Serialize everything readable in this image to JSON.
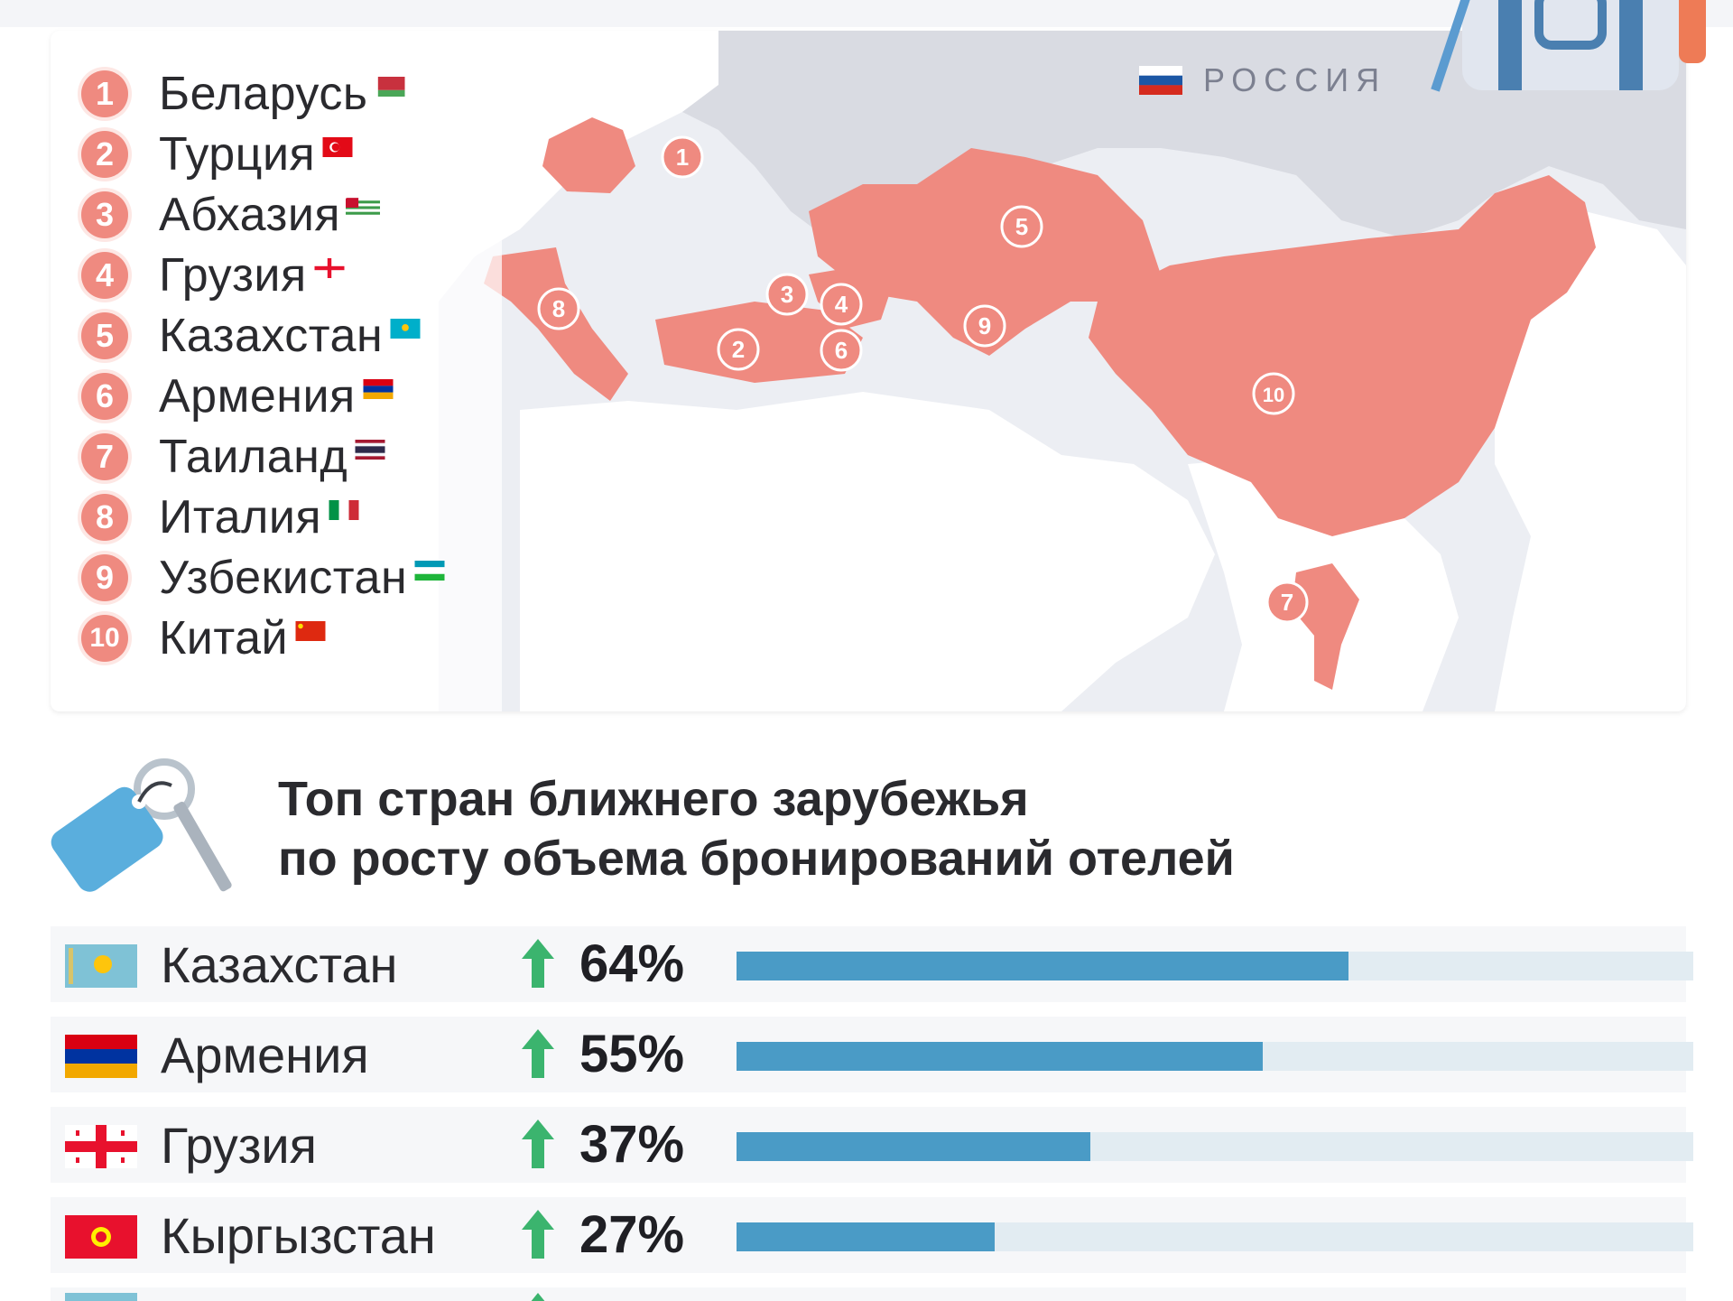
{
  "map": {
    "legend": [
      {
        "num": "1",
        "name": "Беларусь",
        "flag_icon": "belarus-flag-icon"
      },
      {
        "num": "2",
        "name": "Турция",
        "flag_icon": "turkey-flag-icon"
      },
      {
        "num": "3",
        "name": "Абхазия",
        "flag_icon": "abkhazia-flag-icon"
      },
      {
        "num": "4",
        "name": "Грузия",
        "flag_icon": "georgia-flag-icon"
      },
      {
        "num": "5",
        "name": "Казахстан",
        "flag_icon": "kazakhstan-flag-icon"
      },
      {
        "num": "6",
        "name": "Армения",
        "flag_icon": "armenia-flag-icon"
      },
      {
        "num": "7",
        "name": "Таиланд",
        "flag_icon": "thailand-flag-icon"
      },
      {
        "num": "8",
        "name": "Италия",
        "flag_icon": "italy-flag-icon"
      },
      {
        "num": "9",
        "name": "Узбекистан",
        "flag_icon": "uzbekistan-flag-icon"
      },
      {
        "num": "10",
        "name": "Китай",
        "flag_icon": "china-flag-icon"
      }
    ],
    "russia_label": "РОССИЯ",
    "markers": [
      "1",
      "2",
      "3",
      "4",
      "5",
      "6",
      "7",
      "8",
      "9",
      "10"
    ],
    "colors": {
      "highlight": "#ef8a80",
      "land": "#ffffff",
      "russia": "#d9dbe2",
      "water": "#eceef3"
    }
  },
  "section": {
    "title_line1": "Топ стран ближнего зарубежья",
    "title_line2": "по росту объема бронирований отелей",
    "bar_color": "#4a9bc6",
    "track_color": "#e2ecf2",
    "arrow_color": "#3bb46e"
  },
  "growth": [
    {
      "country": "Казахстан",
      "percent": "64%",
      "value": 64,
      "flag_icon": "kazakhstan-flag-icon"
    },
    {
      "country": "Армения",
      "percent": "55%",
      "value": 55,
      "flag_icon": "armenia-flag-icon"
    },
    {
      "country": "Грузия",
      "percent": "37%",
      "value": 37,
      "flag_icon": "georgia-flag-icon"
    },
    {
      "country": "Кыргызстан",
      "percent": "27%",
      "value": 27,
      "flag_icon": "kyrgyzstan-flag-icon"
    }
  ]
}
